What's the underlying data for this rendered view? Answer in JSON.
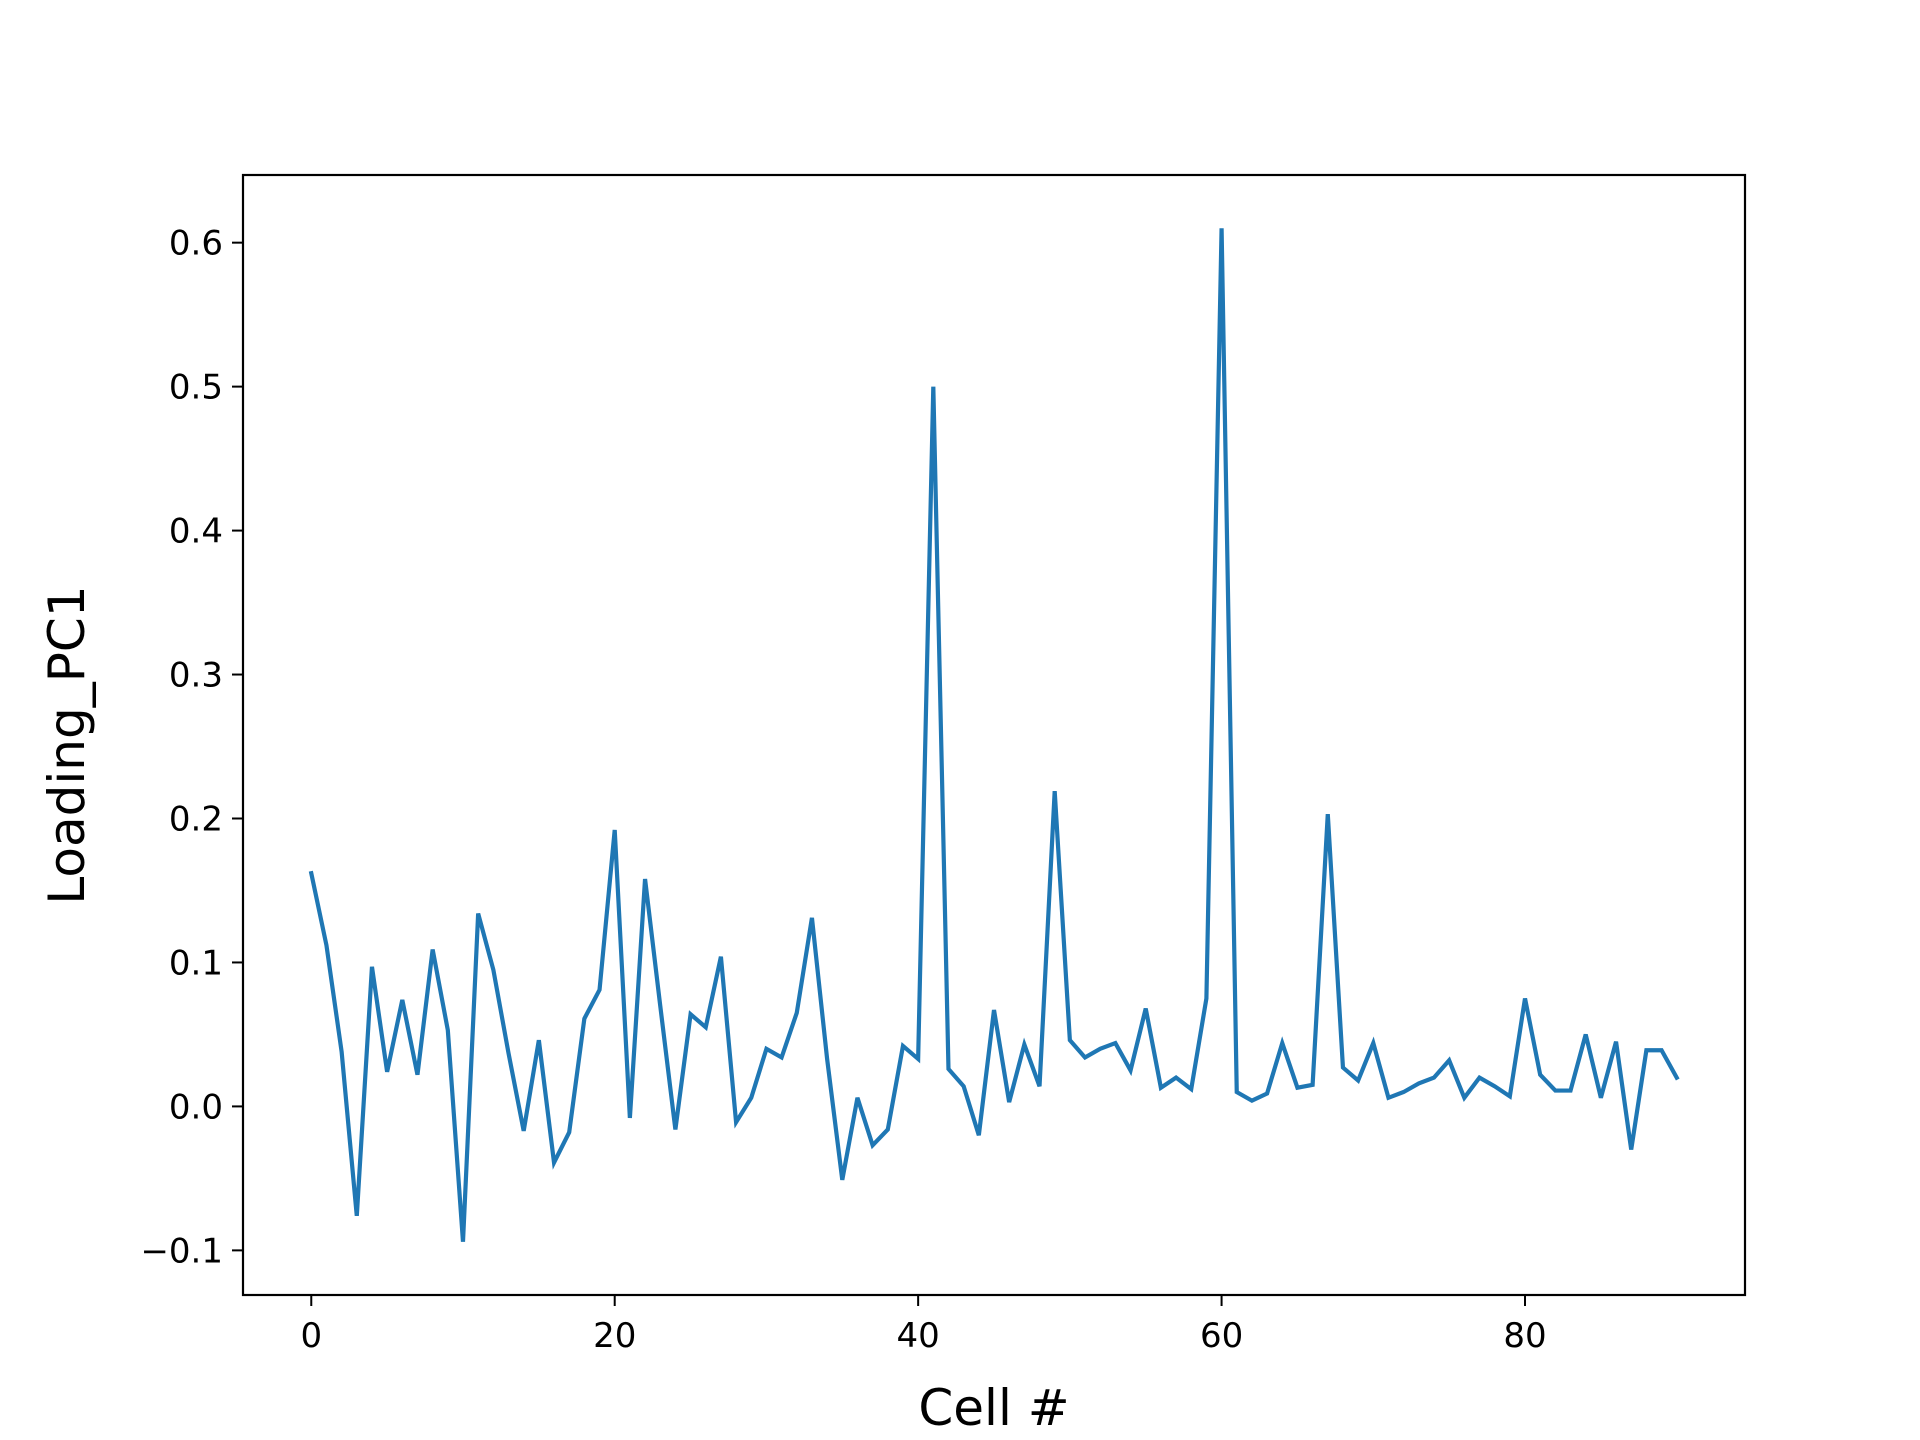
{
  "chart_data": {
    "type": "line",
    "title": "",
    "xlabel": "Cell #",
    "ylabel": "Loading_PC1",
    "xlim": [
      -4.5,
      94.5
    ],
    "ylim": [
      -0.131,
      0.647
    ],
    "x_ticks": [
      0,
      20,
      40,
      60,
      80
    ],
    "x_tick_labels": [
      "0",
      "20",
      "40",
      "60",
      "80"
    ],
    "y_ticks": [
      -0.1,
      0.0,
      0.1,
      0.2,
      0.3,
      0.4,
      0.5,
      0.6
    ],
    "y_tick_labels": [
      "−0.1",
      "0.0",
      "0.1",
      "0.2",
      "0.3",
      "0.4",
      "0.5",
      "0.6"
    ],
    "grid": false,
    "legend": "none",
    "line_color": "#1f77b4",
    "series": [
      {
        "values": [
          0.162,
          0.112,
          0.038,
          -0.076,
          0.097,
          0.024,
          0.074,
          0.022,
          0.109,
          0.053,
          -0.094,
          0.134,
          0.095,
          0.037,
          -0.017,
          0.046,
          -0.039,
          -0.018,
          0.061,
          0.081,
          0.192,
          -0.008,
          0.158,
          0.07,
          -0.016,
          0.064,
          0.055,
          0.104,
          -0.011,
          0.006,
          0.04,
          0.034,
          0.065,
          0.131,
          0.033,
          -0.051,
          0.006,
          -0.027,
          -0.016,
          0.042,
          0.033,
          0.5,
          0.026,
          0.014,
          -0.02,
          0.067,
          0.003,
          0.043,
          0.014,
          0.219,
          0.046,
          0.034,
          0.04,
          0.044,
          0.025,
          0.068,
          0.013,
          0.02,
          0.012,
          0.075,
          0.61,
          0.01,
          0.004,
          0.009,
          0.044,
          0.013,
          0.015,
          0.203,
          0.027,
          0.018,
          0.044,
          0.006,
          0.01,
          0.016,
          0.02,
          0.032,
          0.006,
          0.02,
          0.014,
          0.007,
          0.075,
          0.022,
          0.011,
          0.011,
          0.05,
          0.006,
          0.045,
          -0.03,
          0.039,
          0.039,
          0.02
        ]
      }
    ]
  }
}
